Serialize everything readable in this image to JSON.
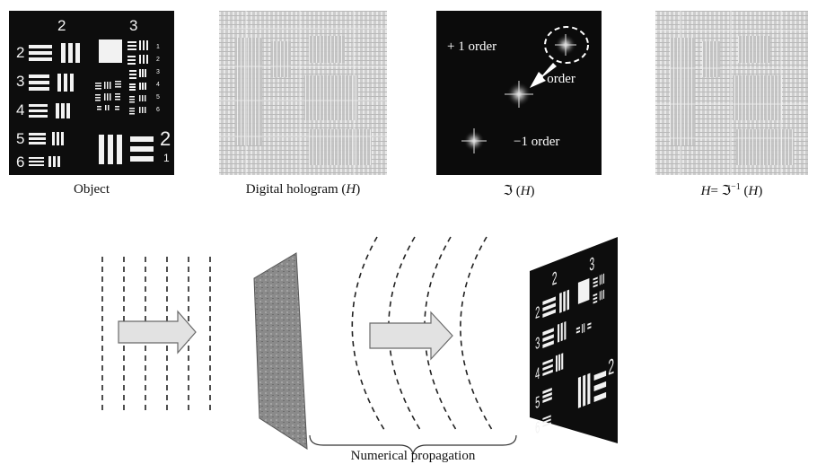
{
  "captions": {
    "object": "Object",
    "hologram_prefix": "Digital hologram (",
    "hologram_var": "H",
    "hologram_suffix": ")",
    "fourier_symbol": "ℑ",
    "fourier_open": " (",
    "fourier_var": "H",
    "fourier_close": ")",
    "inverse_lhs": "H",
    "inverse_eq": "= ",
    "inverse_symbol": "ℑ",
    "inverse_sup": "−1",
    "inverse_open": " (",
    "inverse_var": "H",
    "inverse_close": ")"
  },
  "spectrum": {
    "plus_label": "+ 1 order",
    "zero_label": "0 order",
    "minus_label": "−1 order"
  },
  "target": {
    "group_labels": [
      "2",
      "3"
    ],
    "left_elements": [
      "2",
      "3",
      "4",
      "5",
      "6"
    ],
    "right_elements": [
      "1",
      "2",
      "3",
      "4",
      "5",
      "6"
    ],
    "corner_group": "2",
    "corner_element": "1"
  },
  "propagation_label": "Numerical propagation",
  "colors": {
    "arrow_fill": "#e2e2e2",
    "arrow_stroke": "#6a6a6a",
    "panel_dark": "#111111",
    "hologram_gray": "#cfcfcf"
  }
}
